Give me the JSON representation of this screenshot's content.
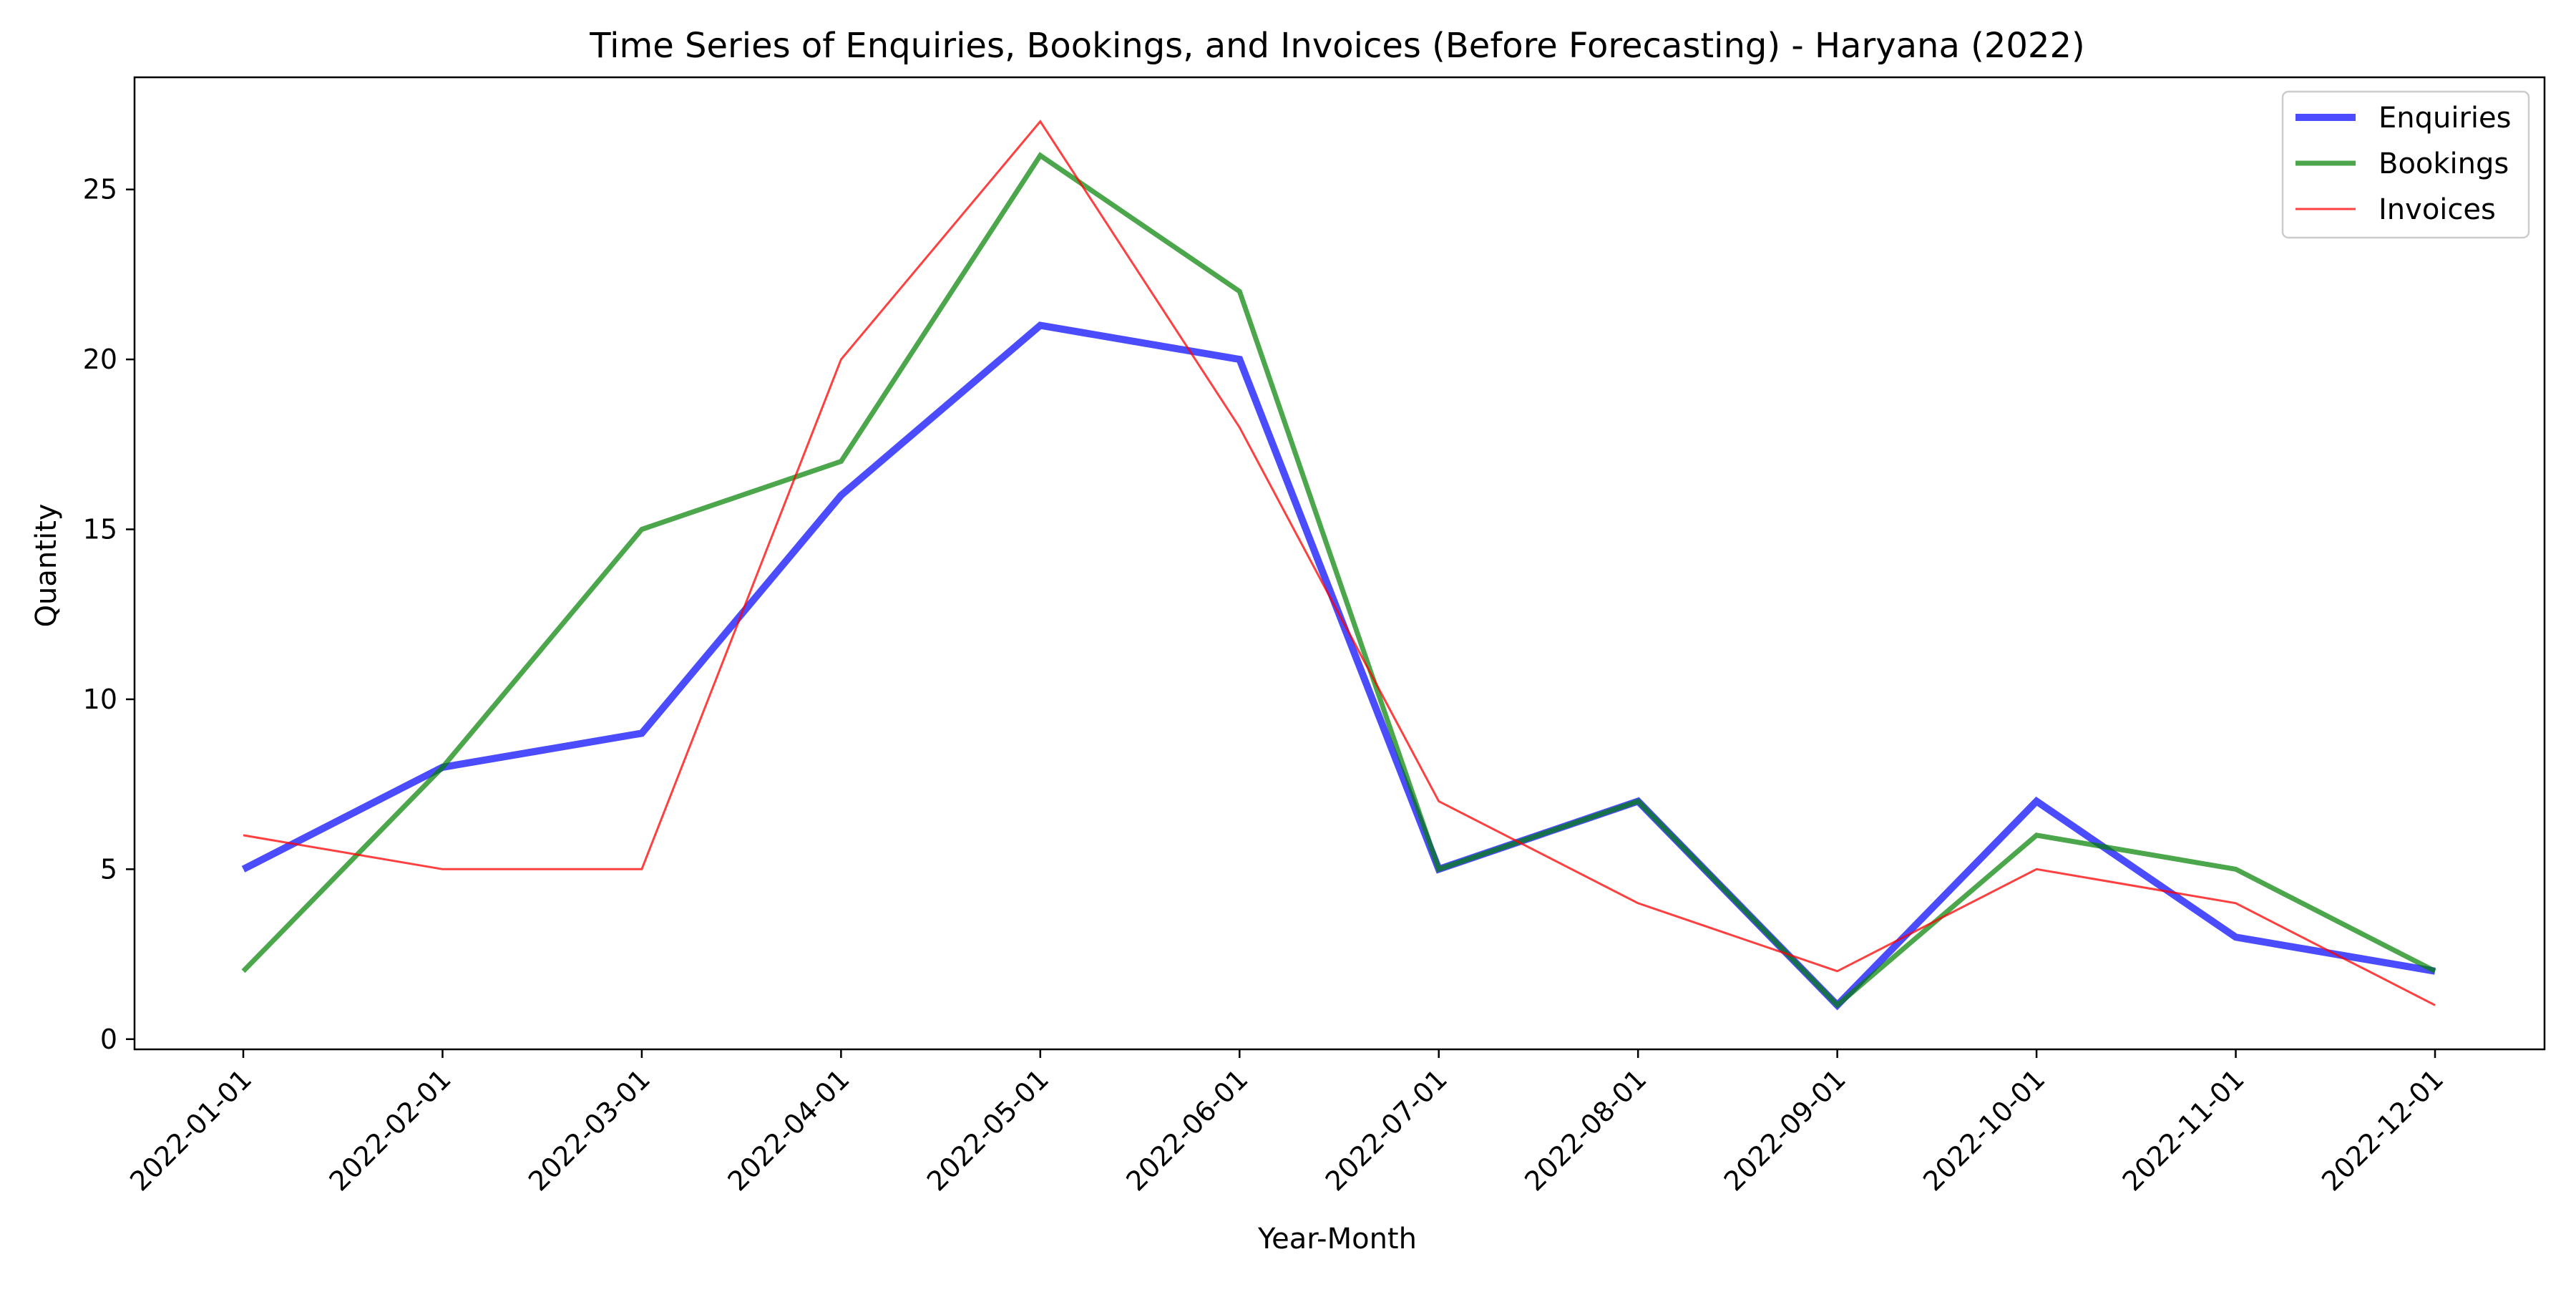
{
  "chart_data": {
    "type": "line",
    "title": "Time Series of Enquiries, Bookings, and Invoices (Before Forecasting) - Haryana (2022)",
    "xlabel": "Year-Month",
    "ylabel": "Quantity",
    "categories": [
      "2022-01-01",
      "2022-02-01",
      "2022-03-01",
      "2022-04-01",
      "2022-05-01",
      "2022-06-01",
      "2022-07-01",
      "2022-08-01",
      "2022-09-01",
      "2022-10-01",
      "2022-11-01",
      "2022-12-01"
    ],
    "ylim": [
      -0.3,
      28.3
    ],
    "yticks": [
      0,
      5,
      10,
      15,
      20,
      25
    ],
    "grid": false,
    "legend_position": "top-right",
    "series": [
      {
        "name": "Enquiries",
        "color": "#0000ff",
        "values": [
          5,
          8,
          9,
          16,
          21,
          20,
          5,
          7,
          1,
          7,
          3,
          2
        ]
      },
      {
        "name": "Bookings",
        "color": "#008000",
        "values": [
          2,
          8,
          15,
          17,
          26,
          22,
          5,
          7,
          1,
          6,
          5,
          2
        ]
      },
      {
        "name": "Invoices",
        "color": "#ff0000",
        "values": [
          6,
          5,
          5,
          20,
          27,
          18,
          7,
          4,
          2,
          5,
          4,
          1
        ]
      }
    ]
  }
}
